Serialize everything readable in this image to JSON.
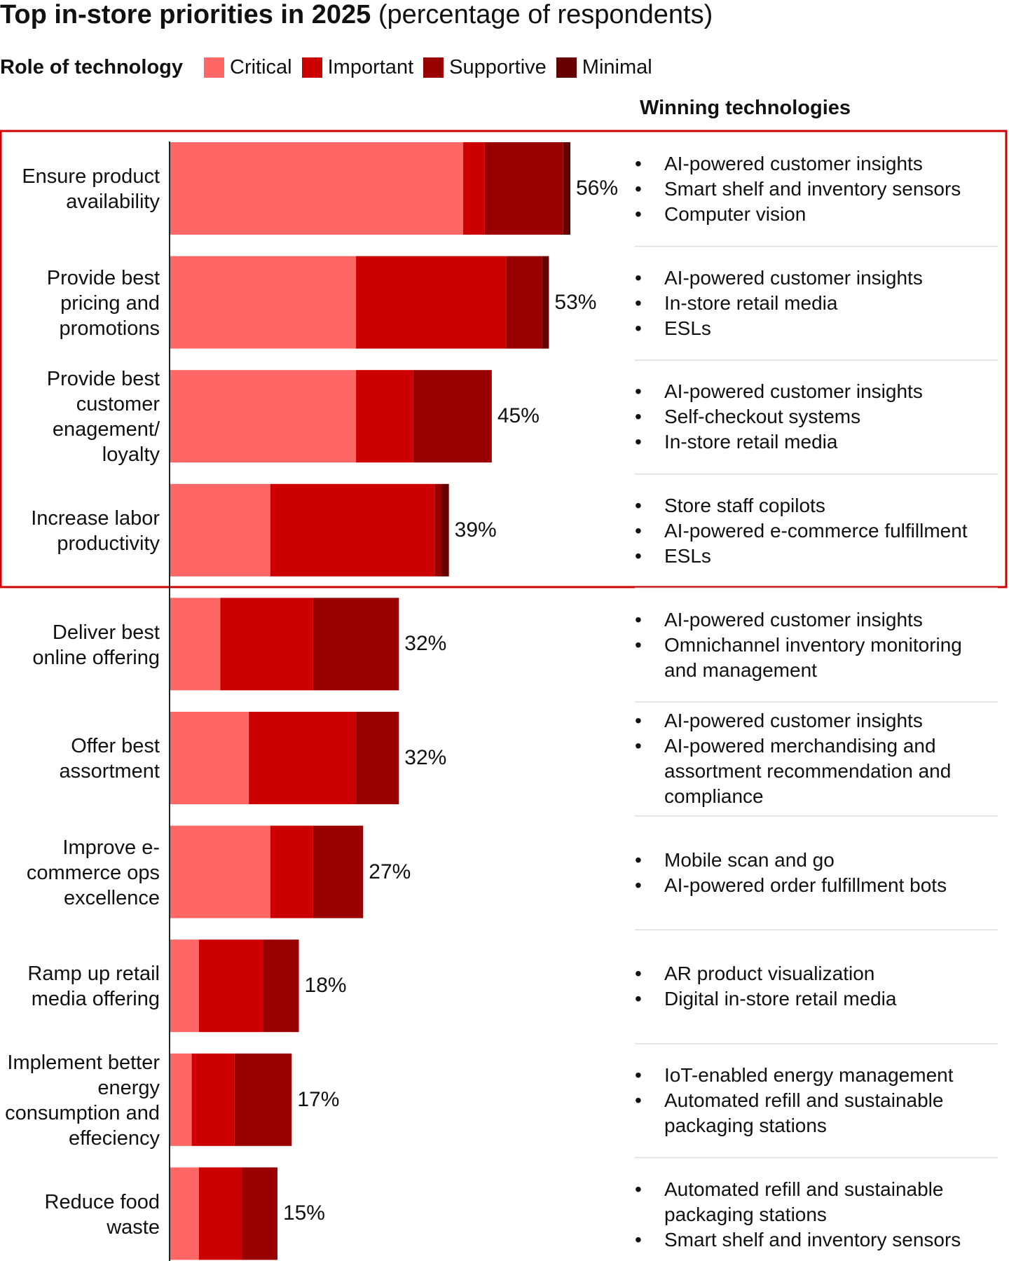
{
  "chart_data": {
    "type": "stacked-bar-horizontal",
    "title": "Top in-store priorities in 2025",
    "subtitle": "(percentage of respondents)",
    "legend_title": "Role of technology",
    "technologies_title": "Winning technologies",
    "categories": [
      "Ensure product availability",
      "Provide best pricing and promotions",
      "Provide best customer enagement/ loyalty",
      "Increase labor productivity",
      "Deliver best online offering",
      "Offer best assortment",
      "Improve e-commerce ops excellence",
      "Ramp up retail media offering",
      "Implement better energy consumption and effeciency",
      "Reduce food waste"
    ],
    "series": [
      {
        "name": "Critical",
        "color": "#ff6666",
        "values": [
          41,
          26,
          26,
          14,
          7,
          11,
          14,
          4,
          3,
          4
        ]
      },
      {
        "name": "Important",
        "color": "#cc0000",
        "values": [
          3,
          21,
          8,
          23,
          13,
          15,
          6,
          9,
          6,
          6
        ]
      },
      {
        "name": "Supportive",
        "color": "#990000",
        "values": [
          11,
          5,
          11,
          1,
          12,
          6,
          7,
          5,
          8,
          5
        ]
      },
      {
        "name": "Minimal",
        "color": "#660000",
        "values": [
          1,
          1,
          0,
          1,
          0,
          0,
          0,
          0,
          0,
          0
        ]
      }
    ],
    "totals": [
      56,
      53,
      45,
      39,
      32,
      32,
      27,
      18,
      17,
      15
    ],
    "total_labels": [
      "56%",
      "53%",
      "45%",
      "39%",
      "32%",
      "32%",
      "27%",
      "18%",
      "17%",
      "15%"
    ],
    "technologies": [
      [
        "AI-powered customer insights",
        "Smart shelf and inventory sensors",
        "Computer vision"
      ],
      [
        "AI-powered customer insights",
        "In-store retail media",
        "ESLs"
      ],
      [
        "AI-powered customer insights",
        "Self-checkout systems",
        "In-store retail media"
      ],
      [
        "Store staff copilots",
        "AI-powered e-commerce fulfillment",
        "ESLs"
      ],
      [
        "AI-powered customer insights",
        "Omnichannel inventory monitoring and management"
      ],
      [
        "AI-powered customer insights",
        "AI-powered merchandising and assortment recommendation and compliance"
      ],
      [
        "Mobile scan and go",
        "AI-powered order fulfillment bots"
      ],
      [
        "AR product visualization",
        "Digital in-store retail media"
      ],
      [
        "IoT-enabled energy management",
        "Automated refill and sustainable packaging stations"
      ],
      [
        "Automated refill and sustainable packaging stations",
        "Smart shelf and inventory sensors"
      ]
    ]
  }
}
